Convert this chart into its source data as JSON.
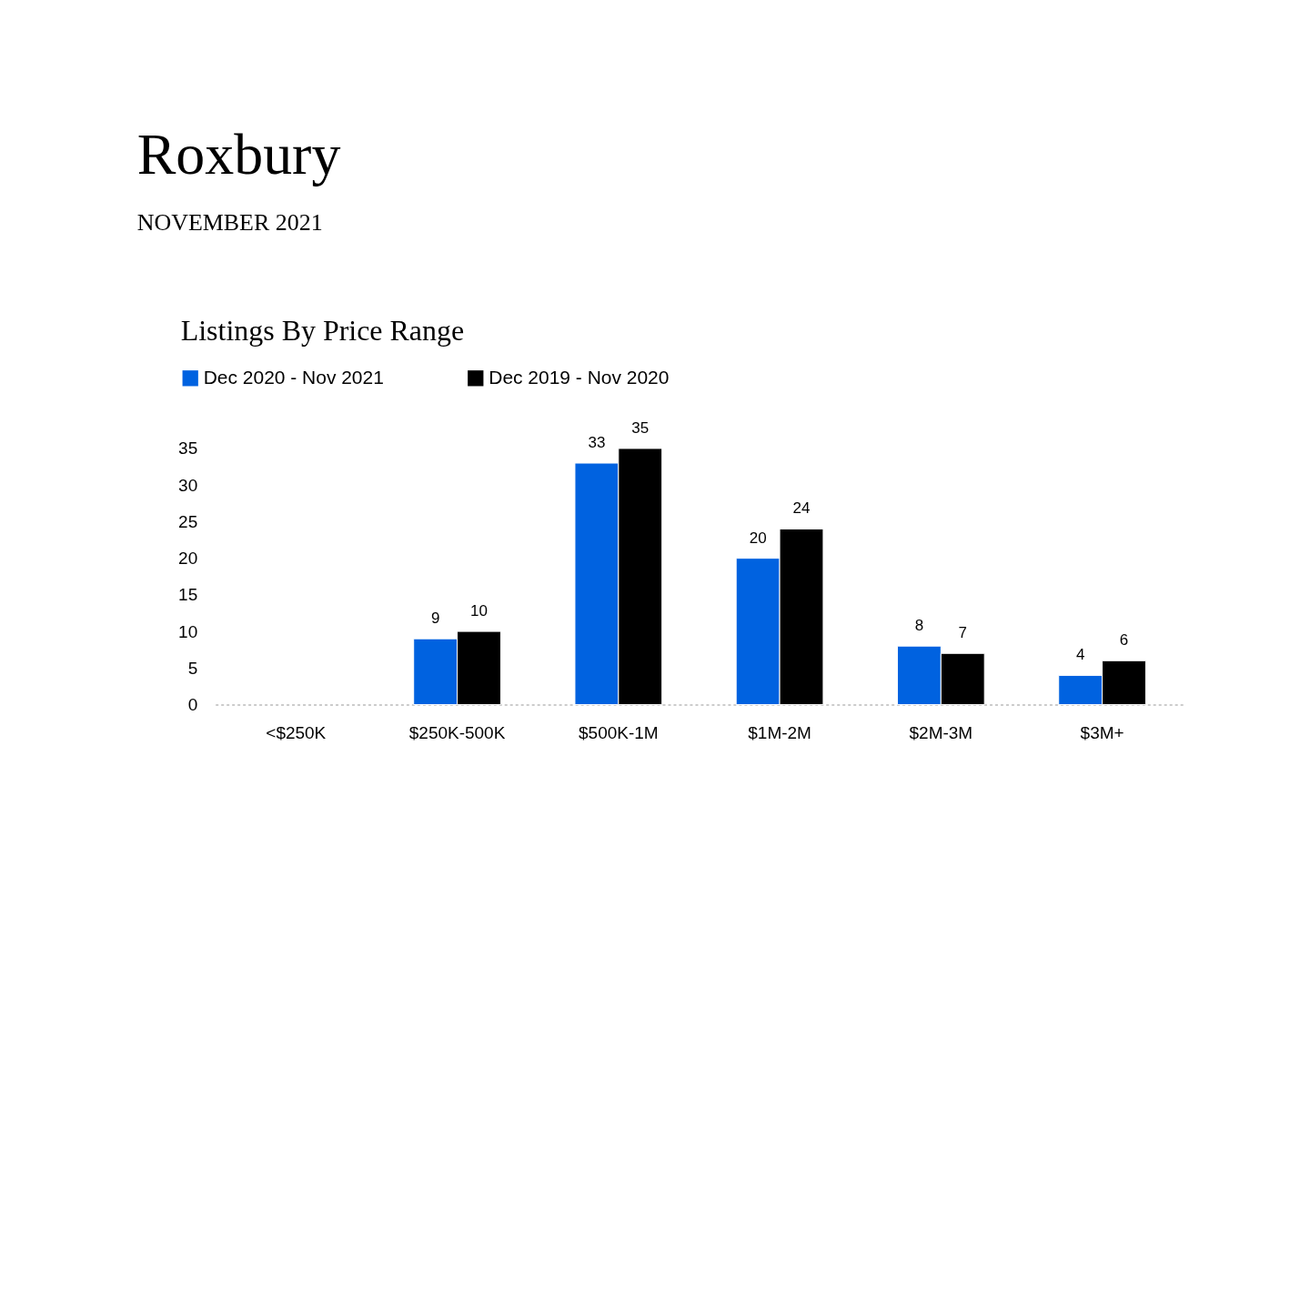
{
  "chart_data": {
    "type": "bar",
    "title": "Roxbury",
    "subtitle": "NOVEMBER 2021",
    "annotations": [
      "Listings By Price Range"
    ],
    "categories": [
      "<$250K",
      "$250K-500K",
      "$500K-1M",
      "$1M-2M",
      "$2M-3M",
      "$3M+"
    ],
    "series": [
      {
        "name": "Dec 2020 - Nov 2021",
        "color": "#0062e0",
        "values": [
          null,
          9,
          33,
          20,
          8,
          4
        ]
      },
      {
        "name": "Dec 2019 - Nov 2020",
        "color": "#000000",
        "values": [
          null,
          10,
          35,
          24,
          7,
          6
        ]
      }
    ],
    "ylim": [
      0,
      35
    ],
    "yticks": [
      0,
      5,
      10,
      15,
      20,
      25,
      30,
      35
    ],
    "data_labels": true,
    "grid": false,
    "legend": "top left"
  }
}
